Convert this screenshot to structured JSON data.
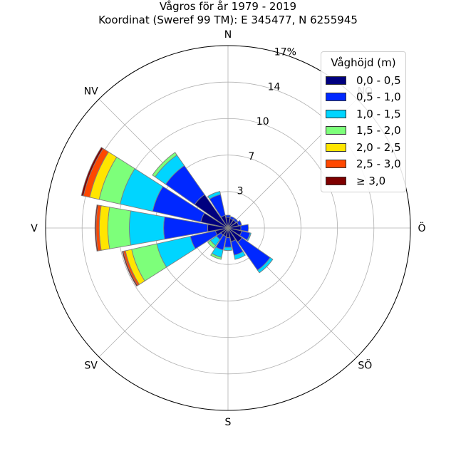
{
  "title_line1": "Vågros för år 1979 - 2019",
  "title_line2": "Koordinat (Sweref 99 TM): E 345477, N 6255945",
  "colors": {
    "bins": [
      "#00007f",
      "#0028ff",
      "#00d5ff",
      "#7dff7a",
      "#ffe500",
      "#ff4800",
      "#7f0000"
    ],
    "grid": "#b0b0b0",
    "outline": "#000000"
  },
  "chart_data": {
    "type": "rose",
    "title": "Vågros för år 1979 - 2019",
    "subtitle": "Koordinat (Sweref 99 TM): E 345477, N 6255945",
    "radial_ticks": [
      "3",
      "7",
      "10",
      "14",
      "17%"
    ],
    "radial_tick_values": [
      3.4,
      6.8,
      10.2,
      13.6,
      17
    ],
    "radial_max": 17,
    "direction_labels": [
      "N",
      "NO",
      "Ö",
      "SÖ",
      "S",
      "SV",
      "V",
      "NV"
    ],
    "legend_title": "Våghöjd (m)",
    "legend_location": "top-right",
    "sector_directions_deg": [
      0,
      22.5,
      45,
      67.5,
      90,
      112.5,
      135,
      157.5,
      180,
      202.5,
      225,
      247.5,
      270,
      292.5,
      315,
      337.5
    ],
    "series": [
      {
        "name": "0,0 - 0,5",
        "values": [
          1.0,
          0.9,
          0.9,
          1.0,
          1.2,
          1.3,
          1.6,
          1.3,
          0.9,
          0.8,
          0.8,
          1.2,
          1.9,
          2.6,
          3.8,
          1.2
        ]
      },
      {
        "name": "0,5 - 1,0",
        "values": [
          0.2,
          0.2,
          0.2,
          0.3,
          0.7,
          0.8,
          3.2,
          1.3,
          0.9,
          1.3,
          0.5,
          2.4,
          4.1,
          4.6,
          3.3,
          2.0
        ]
      },
      {
        "name": "1,0 - 1,5",
        "values": [
          0.0,
          0.0,
          0.0,
          0.0,
          0.0,
          0.1,
          0.3,
          0.4,
          0.3,
          0.7,
          0.7,
          3.2,
          3.2,
          3.1,
          1.2,
          0.3
        ]
      },
      {
        "name": "1,5 - 2,0",
        "values": [
          0.0,
          0.0,
          0.0,
          0.0,
          0.0,
          0.0,
          0.0,
          0.0,
          0.0,
          0.2,
          0.3,
          2.4,
          2.0,
          2.0,
          0.3,
          0.0
        ]
      },
      {
        "name": "2,0 - 2,5",
        "values": [
          0.0,
          0.0,
          0.0,
          0.0,
          0.0,
          0.0,
          0.0,
          0.0,
          0.0,
          0.0,
          0.0,
          0.6,
          0.8,
          0.9,
          0.0,
          0.0
        ]
      },
      {
        "name": "2,5 - 3,0",
        "values": [
          0.0,
          0.0,
          0.0,
          0.0,
          0.0,
          0.0,
          0.0,
          0.0,
          0.0,
          0.0,
          0.0,
          0.2,
          0.3,
          0.6,
          0.0,
          0.0
        ]
      },
      {
        "name": "≥ 3,0",
        "values": [
          0.0,
          0.0,
          0.0,
          0.0,
          0.0,
          0.0,
          0.0,
          0.0,
          0.0,
          0.0,
          0.0,
          0.1,
          0.1,
          0.2,
          0.0,
          0.0
        ]
      }
    ]
  }
}
